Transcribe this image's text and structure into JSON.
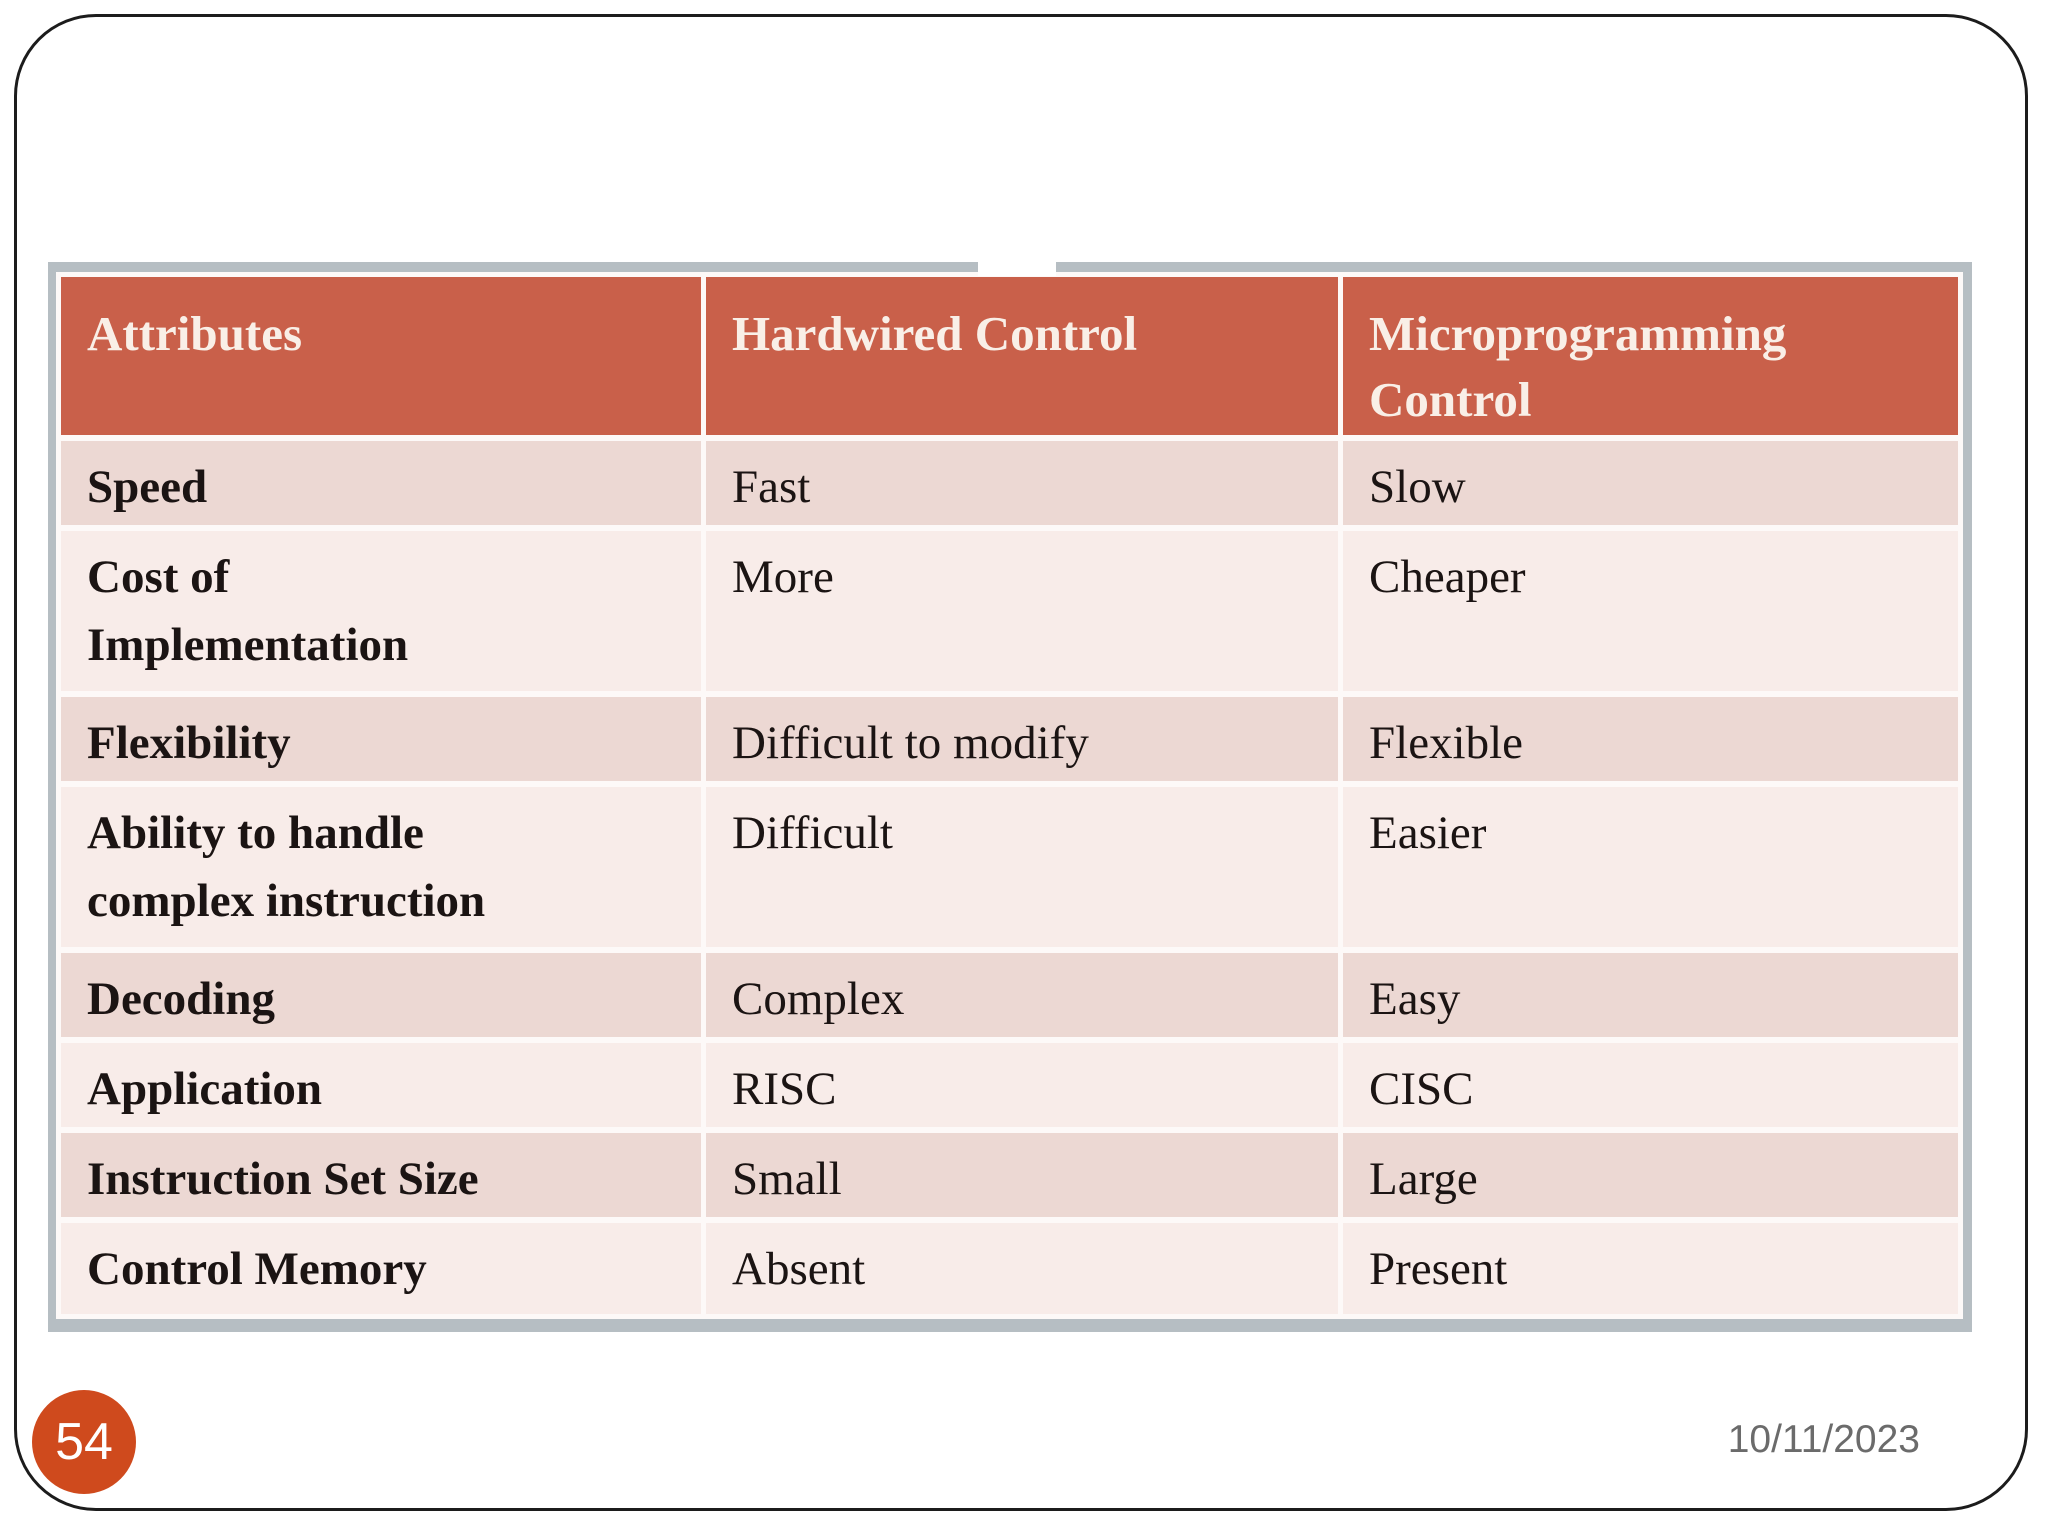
{
  "slide": {
    "page_number": "54",
    "date": "10/11/2023"
  },
  "table": {
    "columns": [
      "Attributes",
      "Hardwired Control",
      "Microprogramming Control"
    ],
    "rows": [
      [
        "Speed",
        "Fast",
        "Slow"
      ],
      [
        "Cost of Implementation",
        "More",
        "Cheaper"
      ],
      [
        "Flexibility",
        "Difficult to modify",
        "Flexible"
      ],
      [
        "Ability to handle complex instruction",
        "Difficult",
        "Easier"
      ],
      [
        "Decoding",
        "Complex",
        "Easy"
      ],
      [
        "Application",
        "RISC",
        "CISC"
      ],
      [
        "Instruction Set Size",
        "Small",
        "Large"
      ],
      [
        "Control Memory",
        "Absent",
        "Present"
      ]
    ]
  },
  "colors": {
    "header_bg": "#c9604a",
    "header_text": "#f9efe7",
    "row_dark": "#ecd8d3",
    "row_light": "#f8ece9",
    "table_border": "#b6bec3",
    "badge_bg": "#cf4a1d",
    "date_text": "#6b6b6b",
    "frame_border": "#1c1c1c"
  }
}
